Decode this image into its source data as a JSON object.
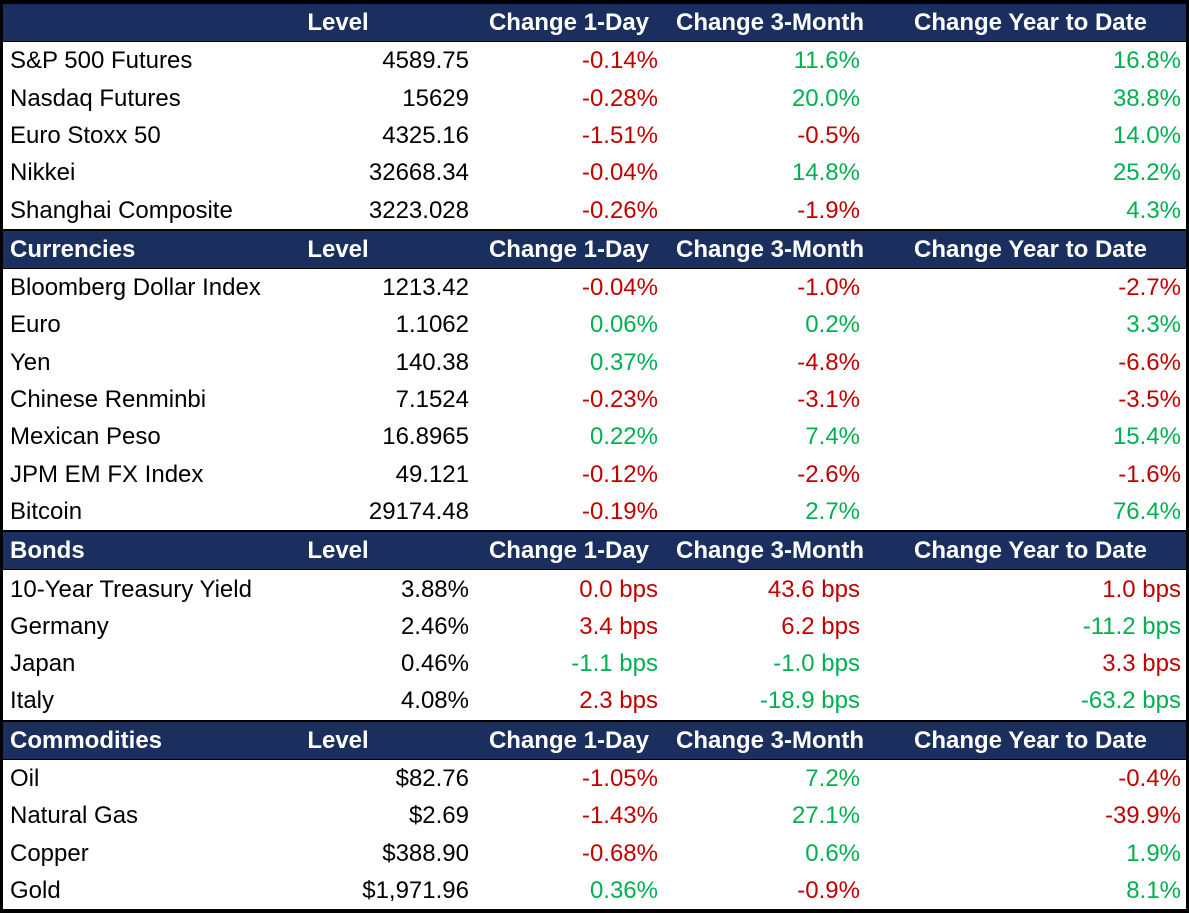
{
  "colors": {
    "header_bg": "#1B2F5E",
    "header_text": "#FFFFFF",
    "body_text": "#000000",
    "row_bg": "#FFFFFF",
    "border": "#000000",
    "positive": "#00B050",
    "negative": "#C00000"
  },
  "chart_data": {
    "type": "table",
    "column_headers": [
      "Level",
      "Change 1-Day",
      "Change 3-Month",
      "Change Year to Date"
    ],
    "sections": [
      {
        "title": "",
        "rows": [
          {
            "name": "S&P 500 Futures",
            "level": "4589.75",
            "change_1d": {
              "text": "-0.14%",
              "tone": "negative"
            },
            "change_3m": {
              "text": "11.6%",
              "tone": "positive"
            },
            "change_ytd": {
              "text": "16.8%",
              "tone": "positive"
            }
          },
          {
            "name": "Nasdaq Futures",
            "level": "15629",
            "change_1d": {
              "text": "-0.28%",
              "tone": "negative"
            },
            "change_3m": {
              "text": "20.0%",
              "tone": "positive"
            },
            "change_ytd": {
              "text": "38.8%",
              "tone": "positive"
            }
          },
          {
            "name": "Euro Stoxx 50",
            "level": "4325.16",
            "change_1d": {
              "text": "-1.51%",
              "tone": "negative"
            },
            "change_3m": {
              "text": "-0.5%",
              "tone": "negative"
            },
            "change_ytd": {
              "text": "14.0%",
              "tone": "positive"
            }
          },
          {
            "name": "Nikkei",
            "level": "32668.34",
            "change_1d": {
              "text": "-0.04%",
              "tone": "negative"
            },
            "change_3m": {
              "text": "14.8%",
              "tone": "positive"
            },
            "change_ytd": {
              "text": "25.2%",
              "tone": "positive"
            }
          },
          {
            "name": "Shanghai Composite",
            "level": "3223.028",
            "change_1d": {
              "text": "-0.26%",
              "tone": "negative"
            },
            "change_3m": {
              "text": "-1.9%",
              "tone": "negative"
            },
            "change_ytd": {
              "text": "4.3%",
              "tone": "positive"
            }
          }
        ]
      },
      {
        "title": "Currencies",
        "rows": [
          {
            "name": "Bloomberg Dollar Index",
            "level": "1213.42",
            "change_1d": {
              "text": "-0.04%",
              "tone": "negative"
            },
            "change_3m": {
              "text": "-1.0%",
              "tone": "negative"
            },
            "change_ytd": {
              "text": "-2.7%",
              "tone": "negative"
            }
          },
          {
            "name": "Euro",
            "level": "1.1062",
            "change_1d": {
              "text": "0.06%",
              "tone": "positive"
            },
            "change_3m": {
              "text": "0.2%",
              "tone": "positive"
            },
            "change_ytd": {
              "text": "3.3%",
              "tone": "positive"
            }
          },
          {
            "name": "Yen",
            "level": "140.38",
            "change_1d": {
              "text": "0.37%",
              "tone": "positive"
            },
            "change_3m": {
              "text": "-4.8%",
              "tone": "negative"
            },
            "change_ytd": {
              "text": "-6.6%",
              "tone": "negative"
            }
          },
          {
            "name": "Chinese Renminbi",
            "level": "7.1524",
            "change_1d": {
              "text": "-0.23%",
              "tone": "negative"
            },
            "change_3m": {
              "text": "-3.1%",
              "tone": "negative"
            },
            "change_ytd": {
              "text": "-3.5%",
              "tone": "negative"
            }
          },
          {
            "name": "Mexican Peso",
            "level": "16.8965",
            "change_1d": {
              "text": "0.22%",
              "tone": "positive"
            },
            "change_3m": {
              "text": "7.4%",
              "tone": "positive"
            },
            "change_ytd": {
              "text": "15.4%",
              "tone": "positive"
            }
          },
          {
            "name": "JPM EM FX Index",
            "level": "49.121",
            "change_1d": {
              "text": "-0.12%",
              "tone": "negative"
            },
            "change_3m": {
              "text": "-2.6%",
              "tone": "negative"
            },
            "change_ytd": {
              "text": "-1.6%",
              "tone": "negative"
            }
          },
          {
            "name": "Bitcoin",
            "level": "29174.48",
            "change_1d": {
              "text": "-0.19%",
              "tone": "negative"
            },
            "change_3m": {
              "text": "2.7%",
              "tone": "positive"
            },
            "change_ytd": {
              "text": "76.4%",
              "tone": "positive"
            }
          }
        ]
      },
      {
        "title": "Bonds",
        "rows": [
          {
            "name": "10-Year Treasury Yield",
            "level": "3.88%",
            "change_1d": {
              "text": "0.0 bps",
              "tone": "negative"
            },
            "change_3m": {
              "text": "43.6 bps",
              "tone": "negative"
            },
            "change_ytd": {
              "text": "1.0 bps",
              "tone": "negative"
            }
          },
          {
            "name": "Germany",
            "level": "2.46%",
            "change_1d": {
              "text": "3.4 bps",
              "tone": "negative"
            },
            "change_3m": {
              "text": "6.2 bps",
              "tone": "negative"
            },
            "change_ytd": {
              "text": "-11.2 bps",
              "tone": "positive"
            }
          },
          {
            "name": "Japan",
            "level": "0.46%",
            "change_1d": {
              "text": "-1.1 bps",
              "tone": "positive"
            },
            "change_3m": {
              "text": "-1.0 bps",
              "tone": "positive"
            },
            "change_ytd": {
              "text": "3.3 bps",
              "tone": "negative"
            }
          },
          {
            "name": "Italy",
            "level": "4.08%",
            "change_1d": {
              "text": "2.3 bps",
              "tone": "negative"
            },
            "change_3m": {
              "text": "-18.9 bps",
              "tone": "positive"
            },
            "change_ytd": {
              "text": "-63.2 bps",
              "tone": "positive"
            }
          }
        ]
      },
      {
        "title": "Commodities",
        "rows": [
          {
            "name": "Oil",
            "level": "$82.76",
            "change_1d": {
              "text": "-1.05%",
              "tone": "negative"
            },
            "change_3m": {
              "text": "7.2%",
              "tone": "positive"
            },
            "change_ytd": {
              "text": "-0.4%",
              "tone": "negative"
            }
          },
          {
            "name": "Natural Gas",
            "level": "$2.69",
            "change_1d": {
              "text": "-1.43%",
              "tone": "negative"
            },
            "change_3m": {
              "text": "27.1%",
              "tone": "positive"
            },
            "change_ytd": {
              "text": "-39.9%",
              "tone": "negative"
            }
          },
          {
            "name": "Copper",
            "level": "$388.90",
            "change_1d": {
              "text": "-0.68%",
              "tone": "negative"
            },
            "change_3m": {
              "text": "0.6%",
              "tone": "positive"
            },
            "change_ytd": {
              "text": "1.9%",
              "tone": "positive"
            }
          },
          {
            "name": "Gold",
            "level": "$1,971.96",
            "change_1d": {
              "text": "0.36%",
              "tone": "positive"
            },
            "change_3m": {
              "text": "-0.9%",
              "tone": "negative"
            },
            "change_ytd": {
              "text": "8.1%",
              "tone": "positive"
            }
          }
        ]
      }
    ]
  }
}
